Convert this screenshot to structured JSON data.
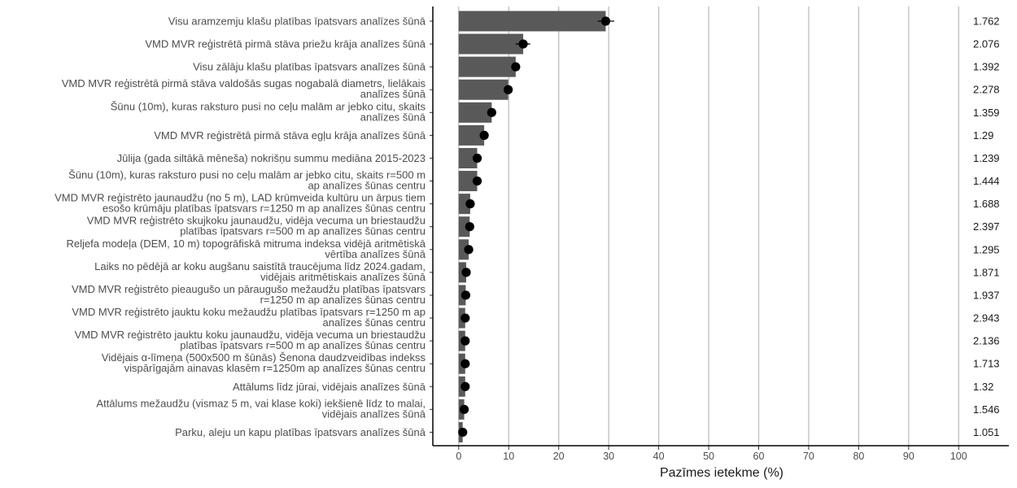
{
  "chart_data": {
    "type": "bar",
    "orientation": "horizontal",
    "xlabel": "Pazīmes ietekme (%)",
    "ylabel": "",
    "xlim": [
      0,
      100
    ],
    "xticks": [
      "0",
      "10",
      "20",
      "30",
      "40",
      "50",
      "60",
      "70",
      "80",
      "90",
      "100"
    ],
    "grid": "vertical",
    "colors": {
      "bar": "#595959",
      "point": "#000000",
      "grid": "#bebebe",
      "axis": "#000000"
    },
    "bars": [
      {
        "label": [
          "Visu aramzemju klašu platības īpatsvars analīzes šūnā"
        ],
        "value": 29.4,
        "error": [
          27.8,
          31.1
        ],
        "side_value": "1.762"
      },
      {
        "label": [
          "VMD MVR reģistrētā pirmā stāva priežu krāja analīzes šūnā"
        ],
        "value": 12.9,
        "error": [
          11.4,
          14.3
        ],
        "side_value": "2.076"
      },
      {
        "label": [
          "Visu zālāju klašu platības īpatsvars analīzes šūnā"
        ],
        "value": 11.4,
        "error": [
          10.9,
          11.9
        ],
        "side_value": "1.392"
      },
      {
        "label": [
          "VMD MVR reģistrētā pirmā stāva valdošās sugas nogabalā diametrs, lielākais",
          "analīzes šūnā"
        ],
        "value": 9.9,
        "error": [
          9.2,
          10.7
        ],
        "side_value": "2.278"
      },
      {
        "label": [
          "Šūnu (10m), kuras raksturo pusi no ceļu malām ar jebko citu, skaits",
          "analīzes šūnā"
        ],
        "value": 6.6,
        "error": [
          6.2,
          7.0
        ],
        "side_value": "1.359"
      },
      {
        "label": [
          "VMD MVR reģistrētā pirmā stāva egļu krāja analīzes šūnā"
        ],
        "value": 5.1,
        "error": [
          4.7,
          5.6
        ],
        "side_value": "1.29"
      },
      {
        "label": [
          "Jūlija (gada siltākā mēneša) nokrišņu summu mediāna 2015-2023"
        ],
        "value": 3.7,
        "error": [
          2.9,
          4.6
        ],
        "side_value": "1.239"
      },
      {
        "label": [
          "Šūnu (10m), kuras raksturo pusi no ceļu malām ar jebko citu, skaits r=500 m",
          "ap analīzes šūnas centru"
        ],
        "value": 3.7,
        "error": [
          3.4,
          4.0
        ],
        "side_value": "1.444"
      },
      {
        "label": [
          "VMD MVR reģistrēto jaunaudžu (no 5 m), LAD krūmveida kultūru un ārpus tiem",
          "esošo krūmāju platības īpatsvars r=1250 m ap analīzes šūnas centru"
        ],
        "value": 2.3,
        "error": [
          2.0,
          2.6
        ],
        "side_value": "1.688"
      },
      {
        "label": [
          "VMD MVR reģistrēto skujkoku jaunaudžu, vidēja vecuma un briestaudžu",
          "platības īpatsvars r=500 m ap analīzes šūnas centru"
        ],
        "value": 2.2,
        "error": [
          1.9,
          2.5
        ],
        "side_value": "2.397"
      },
      {
        "label": [
          "Reljefa modeļa (DEM, 10 m) topogrāfiskā mitruma indeksa vidējā aritmētiskā",
          "vērtība analīzes šūnā"
        ],
        "value": 2.0,
        "error": [
          1.7,
          2.3
        ],
        "side_value": "1.295"
      },
      {
        "label": [
          "Laiks no pēdējā ar koku augšanu saistītā traucējuma līdz 2024.gadam,",
          "vidējais aritmētiskais analīzes šūnā"
        ],
        "value": 1.5,
        "error": [
          1.3,
          1.7
        ],
        "side_value": "1.871"
      },
      {
        "label": [
          "VMD MVR reģistrēto pieaugušo un pāraugušo mežaudžu platības īpatsvars",
          "r=1250 m ap analīzes šūnas centru"
        ],
        "value": 1.4,
        "error": [
          1.2,
          1.6
        ],
        "side_value": "1.937"
      },
      {
        "label": [
          "VMD MVR reģistrēto jauktu koku mežaudžu platības īpatsvars r=1250 m ap",
          "analīzes šūnas centru"
        ],
        "value": 1.3,
        "error": [
          1.1,
          1.5
        ],
        "side_value": "2.943"
      },
      {
        "label": [
          "VMD MVR reģistrēto jauktu koku jaunaudžu, vidēja vecuma un briestaudžu",
          "platības īpatsvars r=500 m ap analīzes šūnas centru"
        ],
        "value": 1.3,
        "error": [
          1.1,
          1.5
        ],
        "side_value": "2.136"
      },
      {
        "label": [
          "Vidējais α-līmeņa (500x500 m šūnās) Šenona daudzveidības indekss",
          "vispārīgajām ainavas klasēm r=1250m ap analīzes šūnas centru"
        ],
        "value": 1.3,
        "error": [
          1.1,
          1.5
        ],
        "side_value": "1.713"
      },
      {
        "label": [
          "Attālums līdz jūrai, vidējais analīzes šūnā"
        ],
        "value": 1.3,
        "error": [
          1.1,
          1.5
        ],
        "side_value": "1.32"
      },
      {
        "label": [
          "Attālums mežaudžu (vismaz 5 m, vai klase koki) iekšienē līdz to malai,",
          "vidējais analīzes šūnā"
        ],
        "value": 1.1,
        "error": [
          0.9,
          1.3
        ],
        "side_value": "1.546"
      },
      {
        "label": [
          "Parku, aleju un kapu platības īpatsvars analīzes šūnā"
        ],
        "value": 0.8,
        "error": [
          0.6,
          1.0
        ],
        "side_value": "1.051"
      }
    ]
  }
}
